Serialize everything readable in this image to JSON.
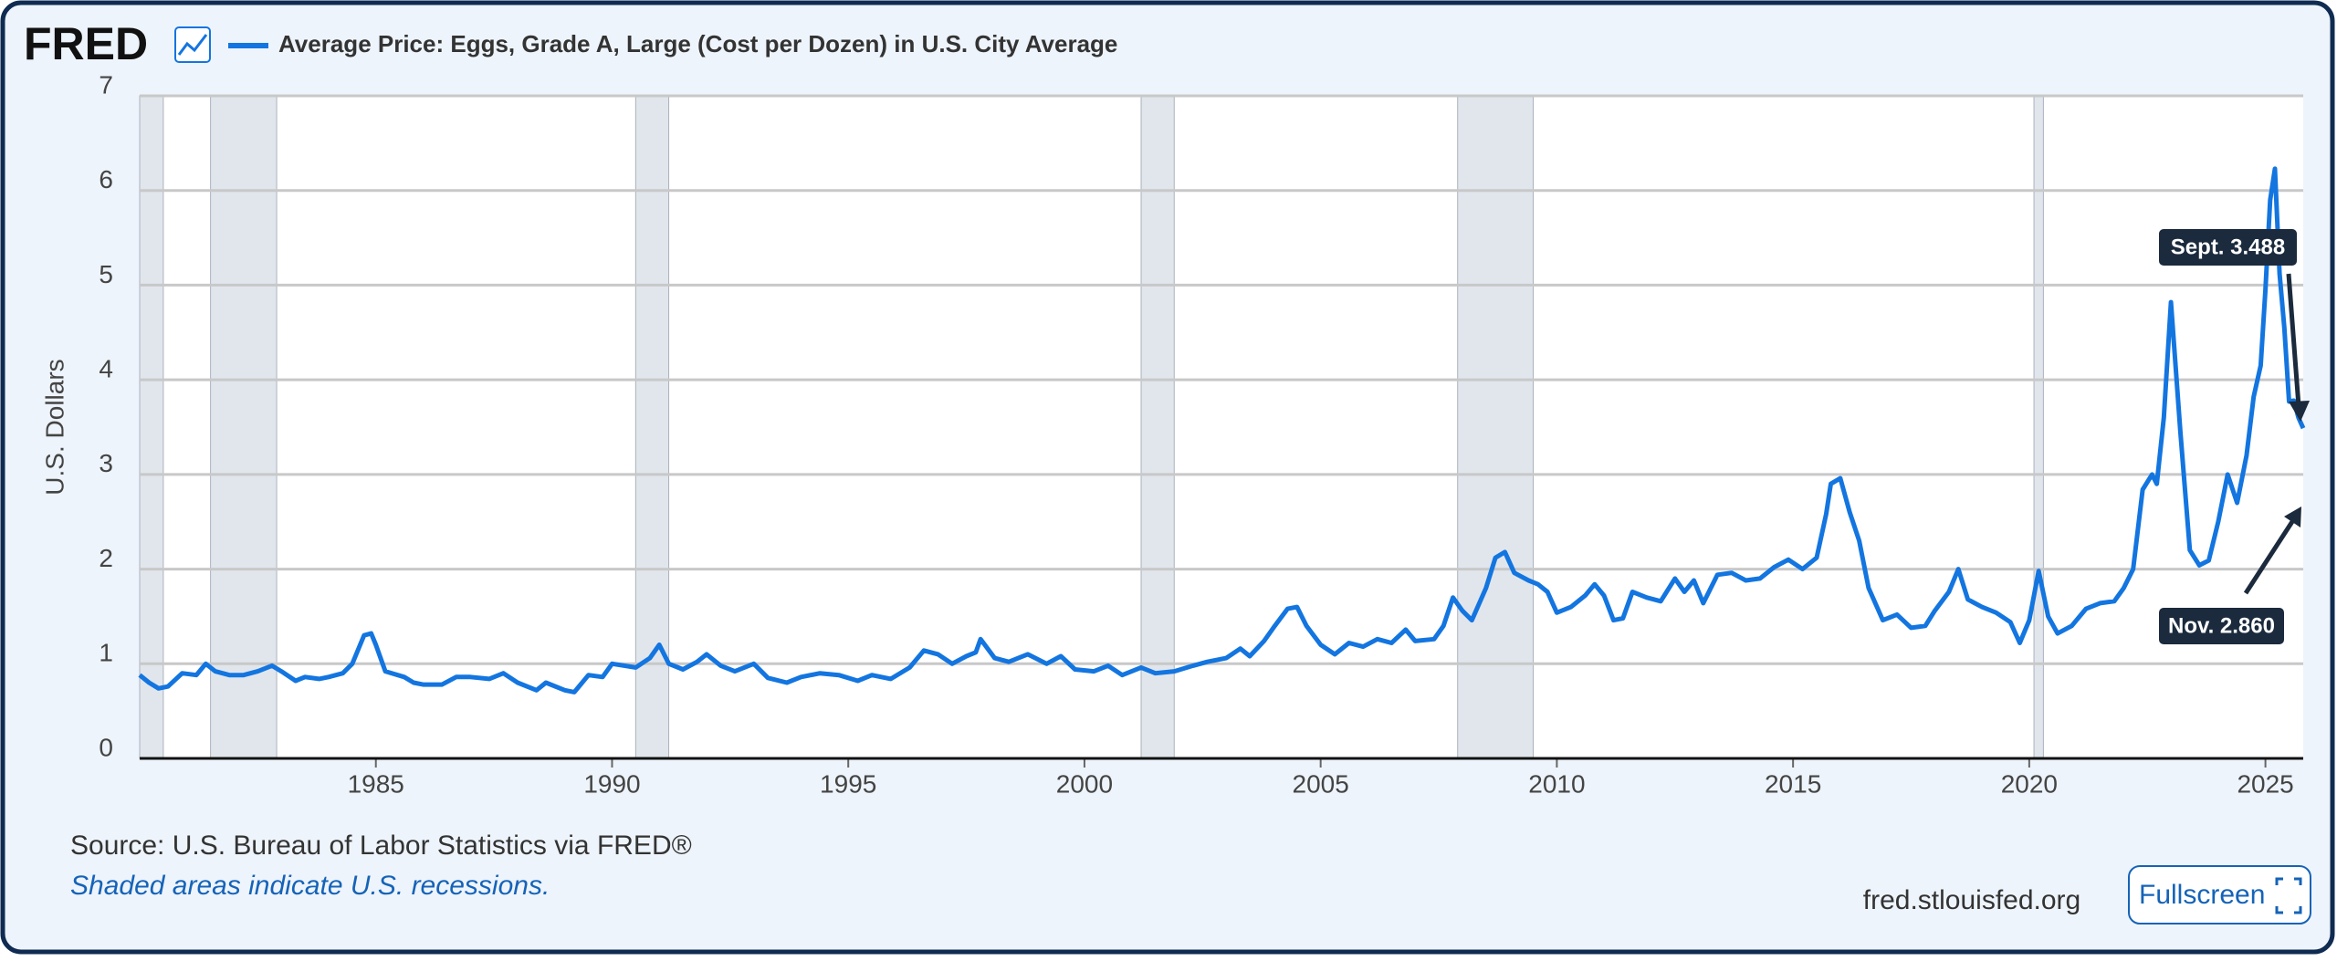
{
  "logo": "FRED",
  "chart_data": {
    "type": "line",
    "ylabel": "U.S. Dollars",
    "source": "Source: U.S. Bureau of Labor Statistics via FRED®",
    "note": "Shaded areas indicate U.S. recessions.",
    "site": "fred.stlouisfed.org",
    "button": "Fullscreen",
    "annotations": [
      "Sept. 3.488",
      "Nov. 2.860"
    ],
    "xlim": [
      1980,
      2025.8
    ],
    "xticks": [
      1985,
      1990,
      1995,
      2000,
      2005,
      2010,
      2015,
      2020,
      2025
    ],
    "ylim": [
      0,
      7
    ],
    "yticks": [
      0,
      1,
      2,
      3,
      4,
      5,
      6,
      7
    ],
    "grid": true,
    "recessions": [
      [
        1980.0,
        1980.5
      ],
      [
        1981.5,
        1982.9
      ],
      [
        1990.5,
        1991.2
      ],
      [
        2001.2,
        2001.9
      ],
      [
        2007.9,
        2009.5
      ],
      [
        2020.1,
        2020.3
      ]
    ],
    "x": [
      1980.0,
      1980.2,
      1980.4,
      1980.6,
      1980.9,
      1981.2,
      1981.4,
      1981.6,
      1981.9,
      1982.2,
      1982.5,
      1982.8,
      1983.0,
      1983.3,
      1983.5,
      1983.8,
      1984.0,
      1984.3,
      1984.5,
      1984.75,
      1984.9,
      1985.0,
      1985.2,
      1985.6,
      1985.8,
      1986.0,
      1986.4,
      1986.7,
      1987.0,
      1987.4,
      1987.7,
      1988.0,
      1988.4,
      1988.6,
      1989.0,
      1989.2,
      1989.5,
      1989.8,
      1990.0,
      1990.5,
      1990.8,
      1991.0,
      1991.2,
      1991.5,
      1991.8,
      1992.0,
      1992.3,
      1992.6,
      1993.0,
      1993.3,
      1993.7,
      1994.0,
      1994.4,
      1994.8,
      1995.2,
      1995.5,
      1995.9,
      1996.3,
      1996.6,
      1996.9,
      1997.2,
      1997.5,
      1997.7,
      1997.8,
      1998.1,
      1998.4,
      1998.8,
      1999.2,
      1999.5,
      1999.8,
      2000.2,
      2000.5,
      2000.8,
      2001.2,
      2001.5,
      2001.9,
      2002.3,
      2002.6,
      2003.0,
      2003.3,
      2003.5,
      2003.8,
      2004.0,
      2004.3,
      2004.5,
      2004.7,
      2005.0,
      2005.3,
      2005.6,
      2005.9,
      2006.2,
      2006.5,
      2006.8,
      2007.0,
      2007.4,
      2007.6,
      2007.8,
      2008.0,
      2008.2,
      2008.5,
      2008.7,
      2008.9,
      2009.1,
      2009.4,
      2009.6,
      2009.8,
      2010.0,
      2010.3,
      2010.6,
      2010.8,
      2011.0,
      2011.2,
      2011.4,
      2011.6,
      2011.9,
      2012.2,
      2012.5,
      2012.7,
      2012.9,
      2013.1,
      2013.4,
      2013.7,
      2014.0,
      2014.3,
      2014.6,
      2014.9,
      2015.2,
      2015.5,
      2015.7,
      2015.8,
      2016.0,
      2016.2,
      2016.4,
      2016.6,
      2016.9,
      2017.2,
      2017.5,
      2017.8,
      2018.0,
      2018.3,
      2018.5,
      2018.7,
      2019.0,
      2019.3,
      2019.6,
      2019.8,
      2020.0,
      2020.2,
      2020.4,
      2020.6,
      2020.9,
      2021.2,
      2021.5,
      2021.8,
      2022.0,
      2022.2,
      2022.4,
      2022.6,
      2022.7,
      2022.85,
      2023.0,
      2023.2,
      2023.4,
      2023.6,
      2023.8,
      2024.0,
      2024.2,
      2024.4,
      2024.6,
      2024.75,
      2024.9,
      2025.0,
      2025.1,
      2025.2,
      2025.3,
      2025.4,
      2025.5,
      2025.6,
      2025.7,
      2025.8
    ],
    "series": [
      {
        "name": "Average Price: Eggs, Grade A, Large (Cost per Dozen) in U.S. City Average",
        "color": "#1375e0",
        "values": [
          0.88,
          0.8,
          0.74,
          0.76,
          0.9,
          0.88,
          1.0,
          0.92,
          0.88,
          0.88,
          0.92,
          0.98,
          0.92,
          0.82,
          0.86,
          0.84,
          0.86,
          0.9,
          1.0,
          1.3,
          1.32,
          1.2,
          0.92,
          0.86,
          0.8,
          0.78,
          0.78,
          0.86,
          0.86,
          0.84,
          0.9,
          0.8,
          0.72,
          0.8,
          0.72,
          0.7,
          0.88,
          0.86,
          1.0,
          0.96,
          1.06,
          1.2,
          1.0,
          0.94,
          1.02,
          1.1,
          0.98,
          0.92,
          1.0,
          0.85,
          0.8,
          0.86,
          0.9,
          0.88,
          0.82,
          0.88,
          0.84,
          0.96,
          1.14,
          1.1,
          1.0,
          1.08,
          1.12,
          1.26,
          1.06,
          1.02,
          1.1,
          1.0,
          1.08,
          0.94,
          0.92,
          0.98,
          0.88,
          0.96,
          0.9,
          0.92,
          0.98,
          1.02,
          1.06,
          1.16,
          1.08,
          1.24,
          1.38,
          1.58,
          1.6,
          1.4,
          1.2,
          1.1,
          1.22,
          1.18,
          1.26,
          1.22,
          1.36,
          1.24,
          1.26,
          1.4,
          1.7,
          1.56,
          1.46,
          1.8,
          2.12,
          2.18,
          1.96,
          1.88,
          1.84,
          1.76,
          1.54,
          1.6,
          1.72,
          1.84,
          1.72,
          1.46,
          1.48,
          1.76,
          1.7,
          1.66,
          1.9,
          1.76,
          1.88,
          1.64,
          1.94,
          1.96,
          1.88,
          1.9,
          2.02,
          2.1,
          2.0,
          2.12,
          2.58,
          2.9,
          2.96,
          2.6,
          2.3,
          1.8,
          1.46,
          1.52,
          1.38,
          1.4,
          1.56,
          1.76,
          2.0,
          1.68,
          1.6,
          1.54,
          1.44,
          1.22,
          1.46,
          1.98,
          1.5,
          1.32,
          1.4,
          1.58,
          1.64,
          1.66,
          1.8,
          2.0,
          2.84,
          3.0,
          2.9,
          3.6,
          4.82,
          3.44,
          2.2,
          2.04,
          2.09,
          2.5,
          3.0,
          2.7,
          3.2,
          3.82,
          4.15,
          4.95,
          5.9,
          6.23,
          5.12,
          4.55,
          3.77,
          3.78,
          3.6,
          3.488
        ]
      }
    ]
  }
}
